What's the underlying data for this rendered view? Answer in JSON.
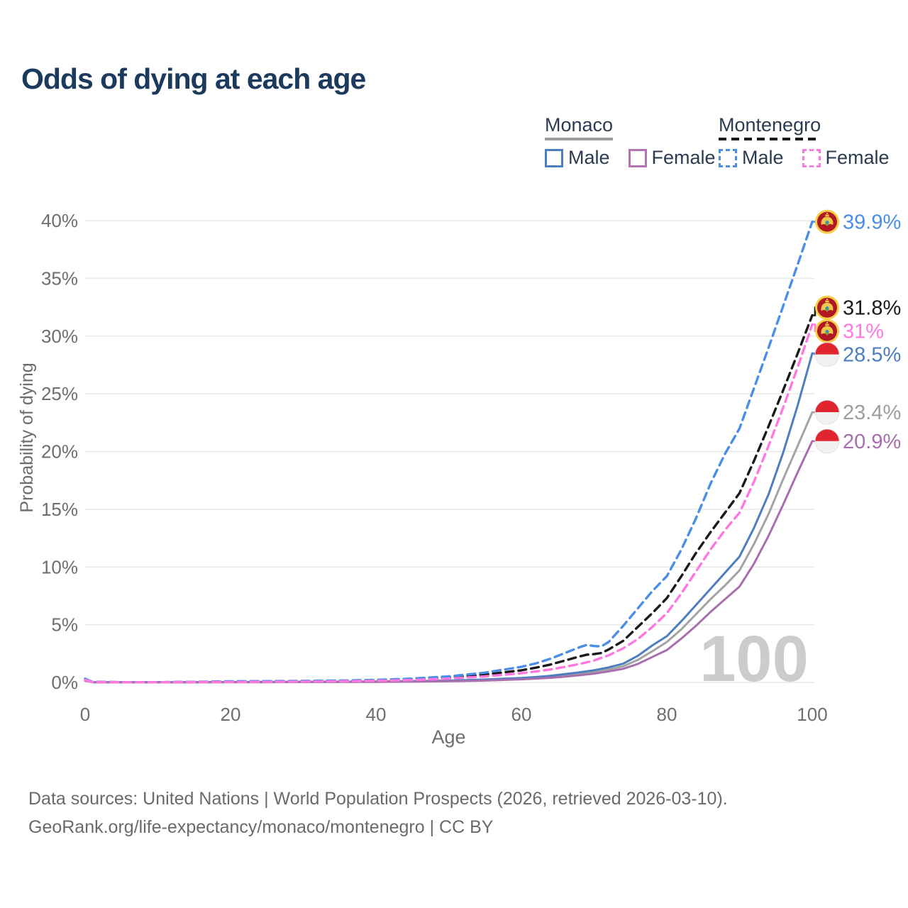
{
  "title": "Odds of dying at each age",
  "legend": {
    "groups": [
      {
        "label": "Monaco",
        "line_style": "solid",
        "underline_color": "#9e9e9e",
        "items": [
          {
            "label": "Male",
            "color": "#4d7ebf"
          },
          {
            "label": "Female",
            "color": "#b173b1"
          }
        ]
      },
      {
        "label": "Montenegro",
        "line_style": "dashed",
        "underline_color": "#1a1a1a",
        "items": [
          {
            "label": "Male",
            "color": "#4a8ee6"
          },
          {
            "label": "Female",
            "color": "#ff78e0"
          }
        ]
      }
    ]
  },
  "chart_data": {
    "type": "line",
    "title": "Odds of dying at each age",
    "xlabel": "Age",
    "ylabel": "Probability of dying",
    "xlim": [
      0,
      100
    ],
    "ylim": [
      0,
      40
    ],
    "grid": "horizontal",
    "legend_position": "top-right",
    "watermark": "100",
    "x_ticks": [
      0,
      20,
      40,
      60,
      80,
      100
    ],
    "y_ticks": [
      {
        "value": 0,
        "label": "0%"
      },
      {
        "value": 5,
        "label": "5%"
      },
      {
        "value": 10,
        "label": "10%"
      },
      {
        "value": 15,
        "label": "15%"
      },
      {
        "value": 20,
        "label": "20%"
      },
      {
        "value": 25,
        "label": "25%"
      },
      {
        "value": 30,
        "label": "30%"
      },
      {
        "value": 35,
        "label": "35%"
      },
      {
        "value": 40,
        "label": "40%"
      }
    ],
    "series": [
      {
        "id": "monaco-all",
        "name": "Monaco (both sexes)",
        "country": "Monaco",
        "sex": "All",
        "color": "#a3a3a3",
        "label_color": "#9e9e9e",
        "dashed": false,
        "flag": "monaco",
        "end_label": "23.4%",
        "points": [
          [
            0,
            0.17
          ],
          [
            1,
            0.02
          ],
          [
            5,
            0.01
          ],
          [
            10,
            0.01
          ],
          [
            15,
            0.02
          ],
          [
            20,
            0.03
          ],
          [
            25,
            0.03
          ],
          [
            30,
            0.04
          ],
          [
            35,
            0.05
          ],
          [
            40,
            0.07
          ],
          [
            45,
            0.09
          ],
          [
            50,
            0.13
          ],
          [
            55,
            0.2
          ],
          [
            60,
            0.32
          ],
          [
            62,
            0.39
          ],
          [
            64,
            0.48
          ],
          [
            66,
            0.6
          ],
          [
            68,
            0.74
          ],
          [
            70,
            0.9
          ],
          [
            72,
            1.12
          ],
          [
            74,
            1.4
          ],
          [
            76,
            1.95
          ],
          [
            78,
            2.7
          ],
          [
            80,
            3.5
          ],
          [
            82,
            4.6
          ],
          [
            84,
            5.9
          ],
          [
            86,
            7.2
          ],
          [
            88,
            8.4
          ],
          [
            90,
            9.7
          ],
          [
            92,
            12.0
          ],
          [
            94,
            14.6
          ],
          [
            96,
            17.6
          ],
          [
            98,
            20.5
          ],
          [
            100,
            23.4
          ]
        ]
      },
      {
        "id": "monaco-male",
        "name": "Monaco Male",
        "country": "Monaco",
        "sex": "Male",
        "color": "#4d7ebf",
        "dashed": false,
        "flag": "monaco",
        "end_label": "28.5%",
        "points": [
          [
            0,
            0.2
          ],
          [
            1,
            0.02
          ],
          [
            5,
            0.01
          ],
          [
            10,
            0.01
          ],
          [
            15,
            0.02
          ],
          [
            20,
            0.03
          ],
          [
            25,
            0.04
          ],
          [
            30,
            0.05
          ],
          [
            35,
            0.06
          ],
          [
            40,
            0.08
          ],
          [
            45,
            0.11
          ],
          [
            50,
            0.16
          ],
          [
            55,
            0.25
          ],
          [
            60,
            0.38
          ],
          [
            62,
            0.47
          ],
          [
            64,
            0.58
          ],
          [
            66,
            0.72
          ],
          [
            68,
            0.88
          ],
          [
            70,
            1.05
          ],
          [
            72,
            1.3
          ],
          [
            74,
            1.62
          ],
          [
            76,
            2.3
          ],
          [
            78,
            3.2
          ],
          [
            80,
            4.0
          ],
          [
            82,
            5.3
          ],
          [
            84,
            6.7
          ],
          [
            86,
            8.1
          ],
          [
            88,
            9.5
          ],
          [
            90,
            10.9
          ],
          [
            92,
            13.4
          ],
          [
            94,
            16.3
          ],
          [
            96,
            19.9
          ],
          [
            98,
            24.0
          ],
          [
            100,
            28.5
          ]
        ]
      },
      {
        "id": "monaco-female",
        "name": "Monaco Female",
        "country": "Monaco",
        "sex": "Female",
        "color": "#a86fae",
        "dashed": false,
        "flag": "monaco",
        "end_label": "20.9%",
        "points": [
          [
            0,
            0.15
          ],
          [
            1,
            0.02
          ],
          [
            5,
            0.01
          ],
          [
            10,
            0.01
          ],
          [
            15,
            0.01
          ],
          [
            20,
            0.02
          ],
          [
            25,
            0.02
          ],
          [
            30,
            0.03
          ],
          [
            35,
            0.04
          ],
          [
            40,
            0.05
          ],
          [
            45,
            0.07
          ],
          [
            50,
            0.1
          ],
          [
            55,
            0.16
          ],
          [
            60,
            0.27
          ],
          [
            62,
            0.33
          ],
          [
            64,
            0.4
          ],
          [
            66,
            0.5
          ],
          [
            68,
            0.62
          ],
          [
            70,
            0.76
          ],
          [
            72,
            0.95
          ],
          [
            74,
            1.18
          ],
          [
            76,
            1.6
          ],
          [
            78,
            2.2
          ],
          [
            80,
            2.8
          ],
          [
            82,
            3.8
          ],
          [
            84,
            4.9
          ],
          [
            86,
            6.1
          ],
          [
            88,
            7.2
          ],
          [
            90,
            8.3
          ],
          [
            92,
            10.3
          ],
          [
            94,
            12.7
          ],
          [
            96,
            15.4
          ],
          [
            98,
            18.2
          ],
          [
            100,
            20.9
          ]
        ]
      },
      {
        "id": "montenegro-all",
        "name": "Montenegro (both sexes)",
        "country": "Montenegro",
        "sex": "All",
        "color": "#1a1a1a",
        "dashed": true,
        "flag": "montenegro",
        "end_label": "31.8%",
        "points": [
          [
            0,
            0.26
          ],
          [
            1,
            0.04
          ],
          [
            5,
            0.02
          ],
          [
            10,
            0.02
          ],
          [
            15,
            0.04
          ],
          [
            20,
            0.07
          ],
          [
            25,
            0.08
          ],
          [
            30,
            0.1
          ],
          [
            35,
            0.13
          ],
          [
            40,
            0.18
          ],
          [
            45,
            0.27
          ],
          [
            50,
            0.42
          ],
          [
            55,
            0.68
          ],
          [
            60,
            1.05
          ],
          [
            62,
            1.28
          ],
          [
            64,
            1.55
          ],
          [
            66,
            1.9
          ],
          [
            68,
            2.25
          ],
          [
            69,
            2.4
          ],
          [
            70,
            2.45
          ],
          [
            71,
            2.55
          ],
          [
            72,
            2.85
          ],
          [
            74,
            3.6
          ],
          [
            76,
            4.8
          ],
          [
            78,
            6.0
          ],
          [
            80,
            7.3
          ],
          [
            82,
            9.2
          ],
          [
            84,
            11.2
          ],
          [
            86,
            13.0
          ],
          [
            88,
            14.7
          ],
          [
            90,
            16.4
          ],
          [
            92,
            19.2
          ],
          [
            94,
            22.2
          ],
          [
            96,
            25.3
          ],
          [
            98,
            28.5
          ],
          [
            100,
            31.8
          ]
        ]
      },
      {
        "id": "montenegro-male",
        "name": "Montenegro Male",
        "country": "Montenegro",
        "sex": "Male",
        "color": "#4a8ee6",
        "dashed": true,
        "flag": "montenegro",
        "end_label": "39.9%",
        "points": [
          [
            0,
            0.32
          ],
          [
            1,
            0.05
          ],
          [
            5,
            0.02
          ],
          [
            10,
            0.02
          ],
          [
            15,
            0.05
          ],
          [
            20,
            0.1
          ],
          [
            25,
            0.11
          ],
          [
            30,
            0.13
          ],
          [
            35,
            0.16
          ],
          [
            40,
            0.22
          ],
          [
            45,
            0.33
          ],
          [
            50,
            0.52
          ],
          [
            55,
            0.85
          ],
          [
            60,
            1.35
          ],
          [
            62,
            1.65
          ],
          [
            64,
            2.05
          ],
          [
            66,
            2.55
          ],
          [
            68,
            3.05
          ],
          [
            69,
            3.25
          ],
          [
            70,
            3.15
          ],
          [
            71,
            3.12
          ],
          [
            72,
            3.5
          ],
          [
            74,
            4.9
          ],
          [
            76,
            6.4
          ],
          [
            78,
            7.9
          ],
          [
            80,
            9.2
          ],
          [
            82,
            11.5
          ],
          [
            84,
            14.2
          ],
          [
            86,
            17.2
          ],
          [
            88,
            19.8
          ],
          [
            90,
            22.0
          ],
          [
            92,
            25.5
          ],
          [
            94,
            29.0
          ],
          [
            96,
            32.6
          ],
          [
            98,
            36.2
          ],
          [
            100,
            39.9
          ]
        ]
      },
      {
        "id": "montenegro-female",
        "name": "Montenegro Female",
        "country": "Montenegro",
        "sex": "Female",
        "color": "#ff78e0",
        "dashed": true,
        "flag": "montenegro",
        "end_label": "31%",
        "points": [
          [
            0,
            0.22
          ],
          [
            1,
            0.03
          ],
          [
            5,
            0.01
          ],
          [
            10,
            0.01
          ],
          [
            15,
            0.03
          ],
          [
            20,
            0.04
          ],
          [
            25,
            0.05
          ],
          [
            30,
            0.07
          ],
          [
            35,
            0.1
          ],
          [
            40,
            0.14
          ],
          [
            45,
            0.21
          ],
          [
            50,
            0.33
          ],
          [
            55,
            0.52
          ],
          [
            60,
            0.8
          ],
          [
            62,
            0.95
          ],
          [
            64,
            1.12
          ],
          [
            66,
            1.35
          ],
          [
            68,
            1.6
          ],
          [
            70,
            1.9
          ],
          [
            72,
            2.35
          ],
          [
            74,
            2.95
          ],
          [
            76,
            3.75
          ],
          [
            78,
            4.8
          ],
          [
            80,
            6.0
          ],
          [
            82,
            7.7
          ],
          [
            84,
            9.6
          ],
          [
            86,
            11.5
          ],
          [
            88,
            13.2
          ],
          [
            90,
            14.7
          ],
          [
            92,
            17.4
          ],
          [
            94,
            20.5
          ],
          [
            96,
            23.8
          ],
          [
            98,
            27.3
          ],
          [
            100,
            31.0
          ]
        ]
      }
    ]
  },
  "footer": {
    "line1": "Data sources: United Nations | World Population Prospects (2026, retrieved 2026-03-10).",
    "line2": "GeoRank.org/life-expectancy/monaco/montenegro | CC BY"
  }
}
